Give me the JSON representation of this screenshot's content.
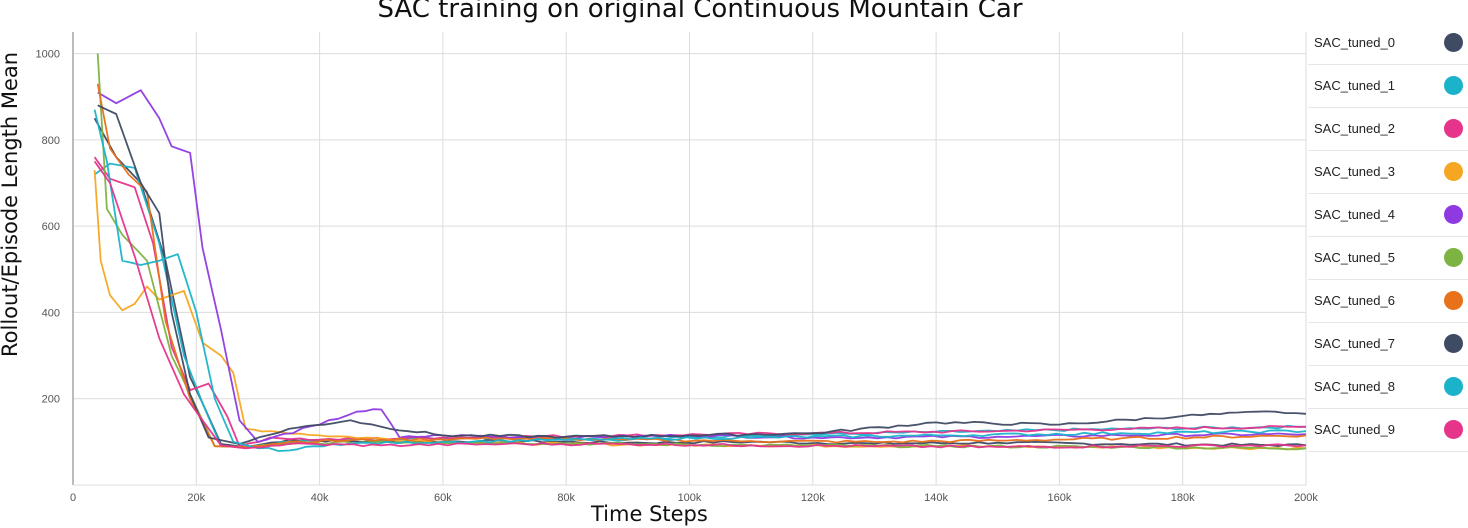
{
  "chart_data": {
    "type": "line",
    "title": "SAC training on original Continuous Mountain Car",
    "xlabel": "Time Steps",
    "ylabel": "Rollout/Episode Length Mean",
    "xlim": [
      0,
      200000
    ],
    "ylim": [
      0,
      1050
    ],
    "x_ticks": [
      0,
      20000,
      40000,
      60000,
      80000,
      100000,
      120000,
      140000,
      160000,
      180000,
      200000
    ],
    "x_tick_labels": [
      "0",
      "20k",
      "40k",
      "60k",
      "80k",
      "100k",
      "120k",
      "140k",
      "160k",
      "180k",
      "200k"
    ],
    "y_ticks": [
      200,
      400,
      600,
      800,
      1000
    ],
    "y_tick_labels": [
      "200",
      "400",
      "600",
      "800",
      "1000"
    ],
    "grid": true,
    "legend_position": "right",
    "series": [
      {
        "name": "SAC_tuned_0",
        "color": "#3f4a63",
        "points": [
          [
            3500,
            850
          ],
          [
            7000,
            760
          ],
          [
            11000,
            700
          ],
          [
            15000,
            520
          ],
          [
            19000,
            250
          ],
          [
            21000,
            190
          ],
          [
            24000,
            95
          ],
          [
            28000,
            88
          ],
          [
            35000,
            105
          ],
          [
            50000,
            100
          ],
          [
            70000,
            102
          ],
          [
            90000,
            98
          ],
          [
            110000,
            100
          ],
          [
            130000,
            96
          ],
          [
            150000,
            98
          ],
          [
            170000,
            95
          ],
          [
            200000,
            92
          ]
        ]
      },
      {
        "name": "SAC_tuned_1",
        "color": "#1ab3c9",
        "points": [
          [
            3500,
            720
          ],
          [
            6000,
            745
          ],
          [
            10000,
            735
          ],
          [
            14000,
            560
          ],
          [
            18000,
            300
          ],
          [
            21000,
            190
          ],
          [
            24000,
            90
          ],
          [
            28000,
            88
          ],
          [
            34000,
            100
          ],
          [
            45000,
            105
          ],
          [
            65000,
            110
          ],
          [
            90000,
            105
          ],
          [
            110000,
            115
          ],
          [
            130000,
            120
          ],
          [
            150000,
            125
          ],
          [
            170000,
            130
          ],
          [
            200000,
            135
          ]
        ]
      },
      {
        "name": "SAC_tuned_2",
        "color": "#e5348a",
        "points": [
          [
            3500,
            760
          ],
          [
            6000,
            710
          ],
          [
            10000,
            690
          ],
          [
            13000,
            560
          ],
          [
            16000,
            320
          ],
          [
            19000,
            220
          ],
          [
            22000,
            235
          ],
          [
            25000,
            160
          ],
          [
            27000,
            90
          ],
          [
            32000,
            110
          ],
          [
            40000,
            105
          ],
          [
            60000,
            110
          ],
          [
            90000,
            115
          ],
          [
            120000,
            120
          ],
          [
            150000,
            125
          ],
          [
            170000,
            130
          ],
          [
            200000,
            135
          ]
        ]
      },
      {
        "name": "SAC_tuned_3",
        "color": "#f5a623",
        "points": [
          [
            3500,
            730
          ],
          [
            4500,
            520
          ],
          [
            6000,
            440
          ],
          [
            8000,
            405
          ],
          [
            10000,
            420
          ],
          [
            12000,
            460
          ],
          [
            14000,
            430
          ],
          [
            16000,
            440
          ],
          [
            18000,
            450
          ],
          [
            21000,
            330
          ],
          [
            24000,
            300
          ],
          [
            26000,
            260
          ],
          [
            28000,
            130
          ],
          [
            32000,
            125
          ],
          [
            40000,
            115
          ],
          [
            60000,
            100
          ],
          [
            80000,
            95
          ],
          [
            110000,
            92
          ],
          [
            140000,
            90
          ],
          [
            170000,
            88
          ],
          [
            200000,
            85
          ]
        ]
      },
      {
        "name": "SAC_tuned_4",
        "color": "#8e3ae0",
        "points": [
          [
            4000,
            910
          ],
          [
            7000,
            885
          ],
          [
            11000,
            915
          ],
          [
            14000,
            850
          ],
          [
            16000,
            785
          ],
          [
            19000,
            770
          ],
          [
            21000,
            550
          ],
          [
            24000,
            360
          ],
          [
            27000,
            150
          ],
          [
            30000,
            100
          ],
          [
            40000,
            140
          ],
          [
            46000,
            170
          ],
          [
            50000,
            175
          ],
          [
            53000,
            110
          ],
          [
            60000,
            115
          ],
          [
            80000,
            110
          ],
          [
            100000,
            115
          ],
          [
            120000,
            110
          ],
          [
            150000,
            112
          ],
          [
            170000,
            115
          ],
          [
            200000,
            118
          ]
        ]
      },
      {
        "name": "SAC_tuned_5",
        "color": "#7cb342",
        "points": [
          [
            4000,
            1000
          ],
          [
            5500,
            640
          ],
          [
            8000,
            580
          ],
          [
            12000,
            520
          ],
          [
            16000,
            300
          ],
          [
            20000,
            180
          ],
          [
            23000,
            90
          ],
          [
            28000,
            88
          ],
          [
            35000,
            95
          ],
          [
            50000,
            100
          ],
          [
            70000,
            98
          ],
          [
            90000,
            95
          ],
          [
            110000,
            92
          ],
          [
            140000,
            90
          ],
          [
            170000,
            88
          ],
          [
            200000,
            85
          ]
        ]
      },
      {
        "name": "SAC_tuned_6",
        "color": "#e8711a",
        "points": [
          [
            4000,
            930
          ],
          [
            6000,
            780
          ],
          [
            9000,
            720
          ],
          [
            12000,
            680
          ],
          [
            15000,
            380
          ],
          [
            19000,
            200
          ],
          [
            23000,
            90
          ],
          [
            28000,
            88
          ],
          [
            35000,
            100
          ],
          [
            50000,
            105
          ],
          [
            70000,
            108
          ],
          [
            90000,
            105
          ],
          [
            110000,
            102
          ],
          [
            130000,
            100
          ],
          [
            150000,
            103
          ],
          [
            170000,
            108
          ],
          [
            200000,
            115
          ]
        ]
      },
      {
        "name": "SAC_tuned_7",
        "color": "#3f4a63",
        "points": [
          [
            4000,
            880
          ],
          [
            7000,
            860
          ],
          [
            11000,
            700
          ],
          [
            14000,
            630
          ],
          [
            16000,
            400
          ],
          [
            19000,
            210
          ],
          [
            22000,
            110
          ],
          [
            27000,
            95
          ],
          [
            35000,
            130
          ],
          [
            45000,
            150
          ],
          [
            50000,
            135
          ],
          [
            60000,
            115
          ],
          [
            80000,
            112
          ],
          [
            100000,
            115
          ],
          [
            120000,
            120
          ],
          [
            140000,
            145
          ],
          [
            160000,
            140
          ],
          [
            180000,
            160
          ],
          [
            195000,
            170
          ],
          [
            200000,
            165
          ]
        ]
      },
      {
        "name": "SAC_tuned_8",
        "color": "#1ab3c9",
        "points": [
          [
            3500,
            870
          ],
          [
            5500,
            750
          ],
          [
            8000,
            520
          ],
          [
            11000,
            510
          ],
          [
            14000,
            520
          ],
          [
            17000,
            535
          ],
          [
            20000,
            400
          ],
          [
            23000,
            200
          ],
          [
            26000,
            100
          ],
          [
            30000,
            85
          ],
          [
            35000,
            80
          ],
          [
            42000,
            95
          ],
          [
            60000,
            100
          ],
          [
            80000,
            105
          ],
          [
            110000,
            110
          ],
          [
            140000,
            115
          ],
          [
            170000,
            120
          ],
          [
            200000,
            125
          ]
        ]
      },
      {
        "name": "SAC_tuned_9",
        "color": "#e5348a",
        "points": [
          [
            3500,
            750
          ],
          [
            6000,
            700
          ],
          [
            10000,
            530
          ],
          [
            14000,
            340
          ],
          [
            18000,
            210
          ],
          [
            21000,
            150
          ],
          [
            24000,
            92
          ],
          [
            28000,
            85
          ],
          [
            35000,
            95
          ],
          [
            50000,
            92
          ],
          [
            70000,
            95
          ],
          [
            90000,
            95
          ],
          [
            110000,
            92
          ],
          [
            130000,
            90
          ],
          [
            150000,
            88
          ],
          [
            170000,
            90
          ],
          [
            200000,
            92
          ]
        ]
      }
    ]
  }
}
